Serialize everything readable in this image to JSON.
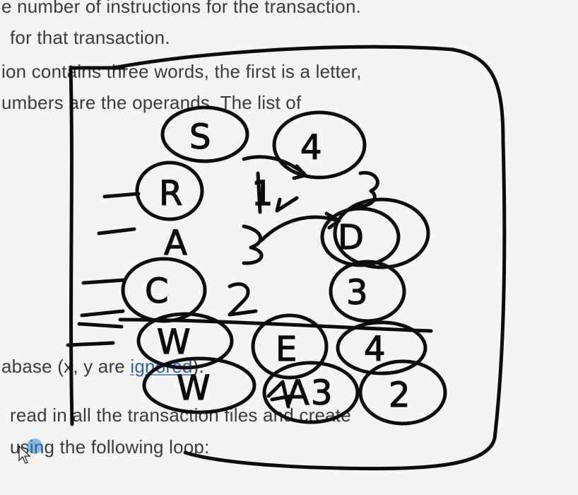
{
  "document": {
    "lines": [
      "e number of instructions for the transaction.",
      "for that transaction.",
      "ion contains three words, the first is a letter,",
      "umbers are the operands. The list of",
      "abase (x, y are ignored).",
      "read in all the transaction files and create",
      "using the following loop:"
    ],
    "link_word": "ignored"
  },
  "annotation": {
    "ink_color": "#0c0c0c",
    "letters": [
      "S",
      "4",
      "R",
      "A",
      "C",
      "W",
      "W",
      "1",
      "3",
      "2",
      "D",
      "3",
      "E",
      "4",
      "A",
      "3",
      "2"
    ]
  },
  "cursor": {
    "icon": "mouse-pointer-icon"
  }
}
